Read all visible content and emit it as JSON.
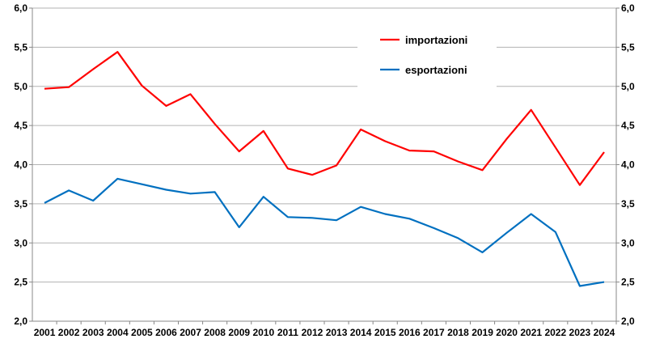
{
  "chart_data": {
    "type": "line",
    "x": [
      "2001",
      "2002",
      "2003",
      "2004",
      "2005",
      "2006",
      "2007",
      "2008",
      "2009",
      "2010",
      "2011",
      "2012",
      "2013",
      "2014",
      "2015",
      "2016",
      "2017",
      "2018",
      "2019",
      "2020",
      "2021",
      "2022",
      "2023",
      "2024"
    ],
    "series": [
      {
        "name": "importazioni",
        "color": "#ff0000",
        "values": [
          4.97,
          4.99,
          5.22,
          5.44,
          5.01,
          4.75,
          4.9,
          4.52,
          4.17,
          4.43,
          3.95,
          3.87,
          3.99,
          4.45,
          4.3,
          4.18,
          4.17,
          4.04,
          3.93,
          4.33,
          4.7,
          4.22,
          3.74,
          4.16
        ]
      },
      {
        "name": "esportazioni",
        "color": "#0070c0",
        "values": [
          3.51,
          3.67,
          3.54,
          3.82,
          3.75,
          3.68,
          3.63,
          3.65,
          3.2,
          3.59,
          3.33,
          3.32,
          3.29,
          3.46,
          3.37,
          3.31,
          3.19,
          3.06,
          2.88,
          3.13,
          3.37,
          3.14,
          2.45,
          2.5
        ]
      }
    ],
    "y_ticks": [
      "2,0",
      "2,5",
      "3,0",
      "3,5",
      "4,0",
      "4,5",
      "5,0",
      "5,5",
      "6,0"
    ],
    "ylim": [
      2.0,
      6.0
    ],
    "y_axis_both_sides": true,
    "grid": true,
    "legend_position": "top-right-inside",
    "title": "",
    "xlabel": "",
    "ylabel": ""
  }
}
